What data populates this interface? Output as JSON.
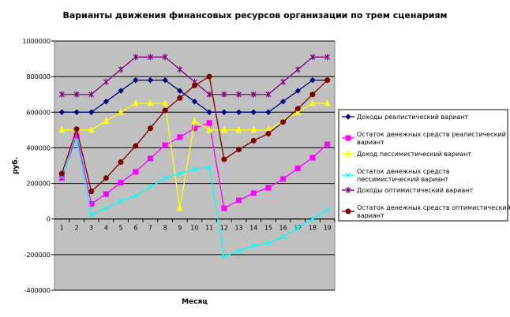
{
  "chart_data": {
    "type": "line",
    "title": "Варианты движения финансовых ресурсов организации по трем сценариям",
    "xlabel": "Месяц",
    "ylabel": "руб.",
    "ylim": [
      -400000,
      1000000
    ],
    "ytick_step": 200000,
    "ytick_labels": [
      "1000000",
      "800000",
      "600000",
      "400000",
      "200000",
      "0",
      "-200000",
      "-400000"
    ],
    "categories": [
      "1",
      "2",
      "3",
      "4",
      "5",
      "6",
      "7",
      "8",
      "9",
      "10",
      "11",
      "12",
      "13",
      "14",
      "15",
      "16",
      "17",
      "18",
      "19"
    ],
    "grid": true,
    "legend_position": "right",
    "plot_background": "#c0c0c0",
    "series": [
      {
        "name": "Доходы реалистический вариант",
        "color": "#000080",
        "marker": "diamond",
        "values": [
          600000,
          600000,
          600000,
          660000,
          720000,
          780000,
          780000,
          780000,
          720000,
          660000,
          600000,
          600000,
          600000,
          600000,
          600000,
          660000,
          720000,
          780000,
          780000
        ]
      },
      {
        "name": "Остаток денежных средств реалистический вариант",
        "color": "#ff00ff",
        "marker": "square",
        "values": [
          230000,
          470000,
          85000,
          140000,
          205000,
          265000,
          340000,
          415000,
          460000,
          510000,
          540000,
          60000,
          105000,
          145000,
          175000,
          225000,
          285000,
          345000,
          420000
        ]
      },
      {
        "name": "Доход пессимистический вариант",
        "color": "#ffff00",
        "marker": "triangle",
        "values": [
          500000,
          500000,
          500000,
          550000,
          600000,
          650000,
          650000,
          650000,
          60000,
          550000,
          500000,
          500000,
          500000,
          500000,
          500000,
          550000,
          600000,
          650000,
          650000
        ]
      },
      {
        "name": "Остаток денежных средств пессимистический вариант",
        "color": "#00ffff",
        "marker": "x",
        "values": [
          240000,
          440000,
          25000,
          60000,
          100000,
          130000,
          180000,
          230000,
          255000,
          280000,
          290000,
          -210000,
          -180000,
          -150000,
          -135000,
          -100000,
          -50000,
          0,
          50000
        ]
      },
      {
        "name": "Доходы оптимистический вариант",
        "color": "#800080",
        "marker": "star",
        "values": [
          700000,
          700000,
          700000,
          770000,
          840000,
          910000,
          910000,
          910000,
          840000,
          770000,
          700000,
          700000,
          700000,
          700000,
          700000,
          770000,
          840000,
          910000,
          910000
        ]
      },
      {
        "name": "Остаток денежных средств оптимистический вариант",
        "color": "#800000",
        "marker": "circle",
        "values": [
          255000,
          505000,
          155000,
          230000,
          320000,
          410000,
          510000,
          610000,
          680000,
          750000,
          800000,
          335000,
          390000,
          440000,
          480000,
          545000,
          620000,
          700000,
          780000
        ]
      }
    ]
  }
}
